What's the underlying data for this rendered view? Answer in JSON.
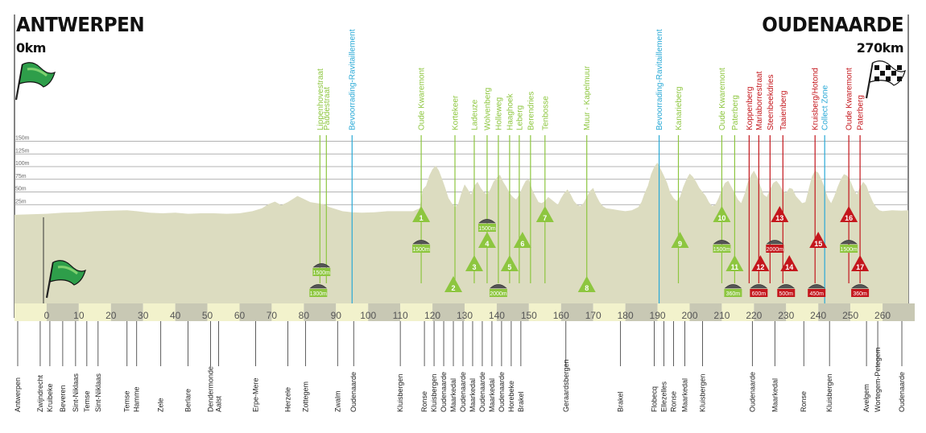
{
  "start": {
    "city": "ANTWERPEN",
    "km": "0km"
  },
  "finish": {
    "city": "OUDENAARDE",
    "km": "270km"
  },
  "colors": {
    "profile": "#dcdcc0",
    "climb": "#8dc63f",
    "cobble_red": "#c4161c",
    "feed": "#29a9d6",
    "axis_dark": "#c8c8b4",
    "axis_light": "#f2f2cc"
  },
  "chart_data": {
    "type": "area",
    "title": "",
    "xlabel": "",
    "ylabel": "",
    "xlim": [
      -10,
      268
    ],
    "ylim": [
      0,
      150
    ],
    "x_ticks": [
      0,
      10,
      20,
      30,
      40,
      50,
      60,
      70,
      80,
      90,
      100,
      110,
      120,
      130,
      140,
      150,
      160,
      170,
      180,
      190,
      200,
      210,
      220,
      230,
      240,
      250,
      260
    ],
    "y_ticks": [
      {
        "v": 25,
        "label": "25m"
      },
      {
        "v": 50,
        "label": "50m"
      },
      {
        "v": 75,
        "label": "75m"
      },
      {
        "v": 100,
        "label": "100m"
      },
      {
        "v": 125,
        "label": "125m"
      },
      {
        "v": 150,
        "label": "150m"
      }
    ],
    "profile": [
      [
        -10,
        5
      ],
      [
        -5,
        6
      ],
      [
        0,
        7
      ],
      [
        5,
        9
      ],
      [
        10,
        10
      ],
      [
        15,
        12
      ],
      [
        20,
        13
      ],
      [
        25,
        14
      ],
      [
        28,
        12
      ],
      [
        32,
        9
      ],
      [
        36,
        8
      ],
      [
        40,
        9
      ],
      [
        44,
        7
      ],
      [
        48,
        8
      ],
      [
        52,
        8
      ],
      [
        56,
        7
      ],
      [
        60,
        8
      ],
      [
        64,
        12
      ],
      [
        67,
        18
      ],
      [
        69,
        26
      ],
      [
        71,
        31
      ],
      [
        73,
        24
      ],
      [
        75,
        30
      ],
      [
        77,
        38
      ],
      [
        78,
        42
      ],
      [
        80,
        36
      ],
      [
        82,
        30
      ],
      [
        84,
        28
      ],
      [
        86,
        26
      ],
      [
        88,
        20
      ],
      [
        90,
        16
      ],
      [
        92,
        12
      ],
      [
        95,
        10
      ],
      [
        98,
        9
      ],
      [
        102,
        10
      ],
      [
        106,
        12
      ],
      [
        110,
        12
      ],
      [
        114,
        12
      ],
      [
        116,
        18
      ],
      [
        117,
        55
      ],
      [
        118,
        62
      ],
      [
        119,
        82
      ],
      [
        120,
        95
      ],
      [
        121,
        102
      ],
      [
        122,
        92
      ],
      [
        123,
        76
      ],
      [
        124,
        58
      ],
      [
        125,
        38
      ],
      [
        126,
        28
      ],
      [
        127,
        20
      ],
      [
        128,
        26
      ],
      [
        129,
        48
      ],
      [
        130,
        65
      ],
      [
        131,
        55
      ],
      [
        132,
        45
      ],
      [
        133,
        62
      ],
      [
        134,
        70
      ],
      [
        135,
        58
      ],
      [
        136,
        50
      ],
      [
        137,
        45
      ],
      [
        138,
        55
      ],
      [
        139,
        70
      ],
      [
        140,
        78
      ],
      [
        141,
        84
      ],
      [
        142,
        70
      ],
      [
        143,
        60
      ],
      [
        144,
        48
      ],
      [
        145,
        40
      ],
      [
        146,
        35
      ],
      [
        147,
        45
      ],
      [
        148,
        60
      ],
      [
        149,
        72
      ],
      [
        150,
        75
      ],
      [
        151,
        55
      ],
      [
        152,
        42
      ],
      [
        153,
        30
      ],
      [
        154,
        28
      ],
      [
        155,
        32
      ],
      [
        156,
        40
      ],
      [
        157,
        35
      ],
      [
        158,
        30
      ],
      [
        159,
        25
      ],
      [
        160,
        38
      ],
      [
        161,
        48
      ],
      [
        162,
        55
      ],
      [
        163,
        45
      ],
      [
        164,
        32
      ],
      [
        165,
        25
      ],
      [
        166,
        22
      ],
      [
        167,
        28
      ],
      [
        168,
        40
      ],
      [
        169,
        52
      ],
      [
        170,
        58
      ],
      [
        171,
        42
      ],
      [
        172,
        30
      ],
      [
        173,
        22
      ],
      [
        174,
        18
      ],
      [
        176,
        16
      ],
      [
        178,
        14
      ],
      [
        180,
        12
      ],
      [
        182,
        14
      ],
      [
        184,
        20
      ],
      [
        185,
        30
      ],
      [
        186,
        48
      ],
      [
        187,
        62
      ],
      [
        188,
        85
      ],
      [
        189,
        100
      ],
      [
        190,
        108
      ],
      [
        191,
        95
      ],
      [
        192,
        82
      ],
      [
        193,
        68
      ],
      [
        194,
        48
      ],
      [
        195,
        38
      ],
      [
        196,
        32
      ],
      [
        197,
        40
      ],
      [
        198,
        60
      ],
      [
        199,
        75
      ],
      [
        200,
        86
      ],
      [
        201,
        80
      ],
      [
        202,
        70
      ],
      [
        203,
        58
      ],
      [
        204,
        50
      ],
      [
        205,
        42
      ],
      [
        206,
        30
      ],
      [
        207,
        22
      ],
      [
        208,
        25
      ],
      [
        209,
        38
      ],
      [
        210,
        55
      ],
      [
        211,
        68
      ],
      [
        212,
        72
      ],
      [
        213,
        60
      ],
      [
        214,
        48
      ],
      [
        215,
        35
      ],
      [
        216,
        28
      ],
      [
        217,
        45
      ],
      [
        218,
        68
      ],
      [
        219,
        82
      ],
      [
        220,
        92
      ],
      [
        221,
        80
      ],
      [
        222,
        62
      ],
      [
        223,
        45
      ],
      [
        224,
        40
      ],
      [
        225,
        55
      ],
      [
        226,
        68
      ],
      [
        227,
        72
      ],
      [
        228,
        64
      ],
      [
        229,
        52
      ],
      [
        230,
        48
      ],
      [
        231,
        58
      ],
      [
        232,
        56
      ],
      [
        233,
        42
      ],
      [
        234,
        35
      ],
      [
        235,
        28
      ],
      [
        236,
        30
      ],
      [
        237,
        55
      ],
      [
        238,
        80
      ],
      [
        239,
        92
      ],
      [
        240,
        88
      ],
      [
        241,
        75
      ],
      [
        242,
        58
      ],
      [
        243,
        38
      ],
      [
        244,
        28
      ],
      [
        245,
        42
      ],
      [
        246,
        60
      ],
      [
        247,
        75
      ],
      [
        248,
        85
      ],
      [
        249,
        82
      ],
      [
        250,
        72
      ],
      [
        251,
        56
      ],
      [
        252,
        45
      ],
      [
        253,
        60
      ],
      [
        254,
        70
      ],
      [
        255,
        62
      ],
      [
        256,
        45
      ],
      [
        257,
        30
      ],
      [
        258,
        20
      ],
      [
        259,
        14
      ],
      [
        260,
        12
      ],
      [
        263,
        14
      ],
      [
        266,
        13
      ],
      [
        268,
        14
      ]
    ]
  },
  "climbs": [
    {
      "n": "1",
      "km": 116.5,
      "level": "top",
      "color": "green",
      "name": "Oude Kwaremont"
    },
    {
      "n": "2",
      "km": 126.5,
      "level": "bot",
      "color": "green",
      "name": "Kortekeer"
    },
    {
      "n": "3",
      "km": 133,
      "level": "mid",
      "color": "green",
      "name": "Ladeuze"
    },
    {
      "n": "4",
      "km": 137,
      "level": "upper",
      "color": "green",
      "name": "Wolvenberg"
    },
    {
      "n": "5",
      "km": 144,
      "level": "mid",
      "color": "green",
      "name": "Haaghoek"
    },
    {
      "n": "6",
      "km": 148,
      "level": "upper",
      "color": "green",
      "name": "Leberg"
    },
    {
      "n": "7",
      "km": 155,
      "level": "top",
      "color": "green",
      "name": "Berendries"
    },
    {
      "n": "8",
      "km": 168,
      "level": "bot",
      "color": "green",
      "name": "Muur - Kapelmuur"
    },
    {
      "n": "9",
      "km": 197,
      "level": "upper",
      "color": "green",
      "name": "Kanarieberg"
    },
    {
      "n": "10",
      "km": 210,
      "level": "top",
      "color": "green",
      "name": "Oude Kwaremont"
    },
    {
      "n": "11",
      "km": 214,
      "level": "mid",
      "color": "green",
      "name": "Paterberg"
    },
    {
      "n": "12",
      "km": 222,
      "level": "mid",
      "color": "red",
      "name": "Koppenberg"
    },
    {
      "n": "13",
      "km": 228,
      "level": "top",
      "color": "red",
      "name": "Steenbeekdries"
    },
    {
      "n": "14",
      "km": 231,
      "level": "mid",
      "color": "red",
      "name": "Taaienberg"
    },
    {
      "n": "15",
      "km": 240,
      "level": "upper",
      "color": "red",
      "name": "Kruisberg/Hotond"
    },
    {
      "n": "16",
      "km": 249.5,
      "level": "top",
      "color": "red",
      "name": "Oude Kwaremont"
    },
    {
      "n": "17",
      "km": 253,
      "level": "mid",
      "color": "red",
      "name": "Paterberg"
    }
  ],
  "cobbles": [
    {
      "label": "1500m",
      "km": 85.5,
      "level": "mid"
    },
    {
      "label": "1300m",
      "km": 84.5,
      "level": "bot"
    },
    {
      "label": "1500m",
      "km": 116.5,
      "level": "upper"
    },
    {
      "label": "1500m",
      "km": 137,
      "level": "top"
    },
    {
      "label": "2000m",
      "km": 140.5,
      "level": "bot"
    },
    {
      "label": "1500m",
      "km": 210,
      "level": "upper"
    },
    {
      "label": "360m",
      "km": 213.5,
      "level": "bot"
    },
    {
      "label": "600m",
      "km": 221.5,
      "level": "bot"
    },
    {
      "label": "2000m",
      "km": 226.5,
      "level": "upper"
    },
    {
      "label": "500m",
      "km": 230,
      "level": "bot"
    },
    {
      "label": "450m",
      "km": 239.5,
      "level": "bot"
    },
    {
      "label": "1500m",
      "km": 249.5,
      "level": "upper"
    },
    {
      "label": "360m",
      "km": 253,
      "level": "bot"
    }
  ],
  "top_labels": [
    {
      "text": "Lippenhovestraat",
      "km": 85,
      "color": "green"
    },
    {
      "text": "Paddestraat",
      "km": 87,
      "color": "green"
    },
    {
      "text": "Bevoorrading-Ravitaillement",
      "km": 95,
      "color": "blue"
    },
    {
      "text": "Oude Kwaremont",
      "km": 116.5,
      "color": "green"
    },
    {
      "text": "Kortekeer",
      "km": 127,
      "color": "green"
    },
    {
      "text": "Ladeuze",
      "km": 133,
      "color": "green"
    },
    {
      "text": "Wolvenberg",
      "km": 137,
      "color": "green"
    },
    {
      "text": "Holleweg",
      "km": 140.5,
      "color": "green"
    },
    {
      "text": "Haaghoek",
      "km": 144,
      "color": "green"
    },
    {
      "text": "Leberg",
      "km": 147,
      "color": "green"
    },
    {
      "text": "Berendries",
      "km": 150.5,
      "color": "green"
    },
    {
      "text": "Tenbosse",
      "km": 155,
      "color": "green"
    },
    {
      "text": "Muur - Kapelmuur",
      "km": 168,
      "color": "green"
    },
    {
      "text": "Bevoorrading-Ravitaillement",
      "km": 190.5,
      "color": "blue"
    },
    {
      "text": "Kanarieberg",
      "km": 196.5,
      "color": "green"
    },
    {
      "text": "Oude Kwaremont",
      "km": 210,
      "color": "green"
    },
    {
      "text": "Paterberg",
      "km": 214,
      "color": "green"
    },
    {
      "text": "Koppenberg",
      "km": 218.5,
      "color": "red"
    },
    {
      "text": "Mariaborrestraat",
      "km": 221.5,
      "color": "red"
    },
    {
      "text": "Steenbeekdries",
      "km": 225,
      "color": "red"
    },
    {
      "text": "Taaienberg",
      "km": 229,
      "color": "red"
    },
    {
      "text": "Kruisberg/Hotond",
      "km": 239,
      "color": "red"
    },
    {
      "text": "Collect Zone",
      "km": 242,
      "color": "blue"
    },
    {
      "text": "Oude Kwaremont",
      "km": 249.5,
      "color": "red"
    },
    {
      "text": "Paterberg",
      "km": 253,
      "color": "red"
    }
  ],
  "places": [
    {
      "text": "Antwerpen",
      "km": -9
    },
    {
      "text": "Zwijndrecht",
      "km": -2
    },
    {
      "text": "Kruibeke",
      "km": 1
    },
    {
      "text": "Beveren",
      "km": 5
    },
    {
      "text": "Sint-Niklaas",
      "km": 9
    },
    {
      "text": "Temse",
      "km": 12.5
    },
    {
      "text": "Sint-Niklaas",
      "km": 16
    },
    {
      "text": "Temse",
      "km": 25
    },
    {
      "text": "Hamme",
      "km": 28
    },
    {
      "text": "Zele",
      "km": 35.5
    },
    {
      "text": "Berlare",
      "km": 44
    },
    {
      "text": "Dendermonde",
      "km": 51
    },
    {
      "text": "Aalst",
      "km": 53.5
    },
    {
      "text": "Erpe-Mere",
      "km": 65
    },
    {
      "text": "Herzele",
      "km": 75
    },
    {
      "text": "Zottegem",
      "km": 80.5
    },
    {
      "text": "Zwalm",
      "km": 90.5
    },
    {
      "text": "Oudenaarde",
      "km": 95.5
    },
    {
      "text": "Kluisbergen",
      "km": 110
    },
    {
      "text": "Ronse",
      "km": 117.5
    },
    {
      "text": "Kluisbergen",
      "km": 120.5
    },
    {
      "text": "Oudenaarde",
      "km": 123.5
    },
    {
      "text": "Maarkedal",
      "km": 126.5
    },
    {
      "text": "Oudenaarde",
      "km": 129.5
    },
    {
      "text": "Maarkedal",
      "km": 132.5
    },
    {
      "text": "Oudenaarde",
      "km": 135.5
    },
    {
      "text": "Maarkedal",
      "km": 138.5
    },
    {
      "text": "Oudenaarde",
      "km": 141.5
    },
    {
      "text": "Horebeke",
      "km": 144.5
    },
    {
      "text": "Brakel",
      "km": 147.5
    },
    {
      "text": "Geraardsbergen",
      "km": 161.5
    },
    {
      "text": "Brakel",
      "km": 178.5
    },
    {
      "text": "Flobecq",
      "km": 189
    },
    {
      "text": "Ellezelles",
      "km": 192
    },
    {
      "text": "Ronse",
      "km": 195
    },
    {
      "text": "Maarkedal",
      "km": 198.5
    },
    {
      "text": "Kluisbergen",
      "km": 204
    },
    {
      "text": "Oudenaarde",
      "km": 219.5
    },
    {
      "text": "Maarkedal",
      "km": 226.5
    },
    {
      "text": "Ronse",
      "km": 235.5
    },
    {
      "text": "Kluisbergen",
      "km": 243.5
    },
    {
      "text": "Avelgem",
      "km": 255
    },
    {
      "text": "Wortegem-Petegem",
      "km": 258.5
    },
    {
      "text": "Oudenaarde",
      "km": 266
    }
  ]
}
